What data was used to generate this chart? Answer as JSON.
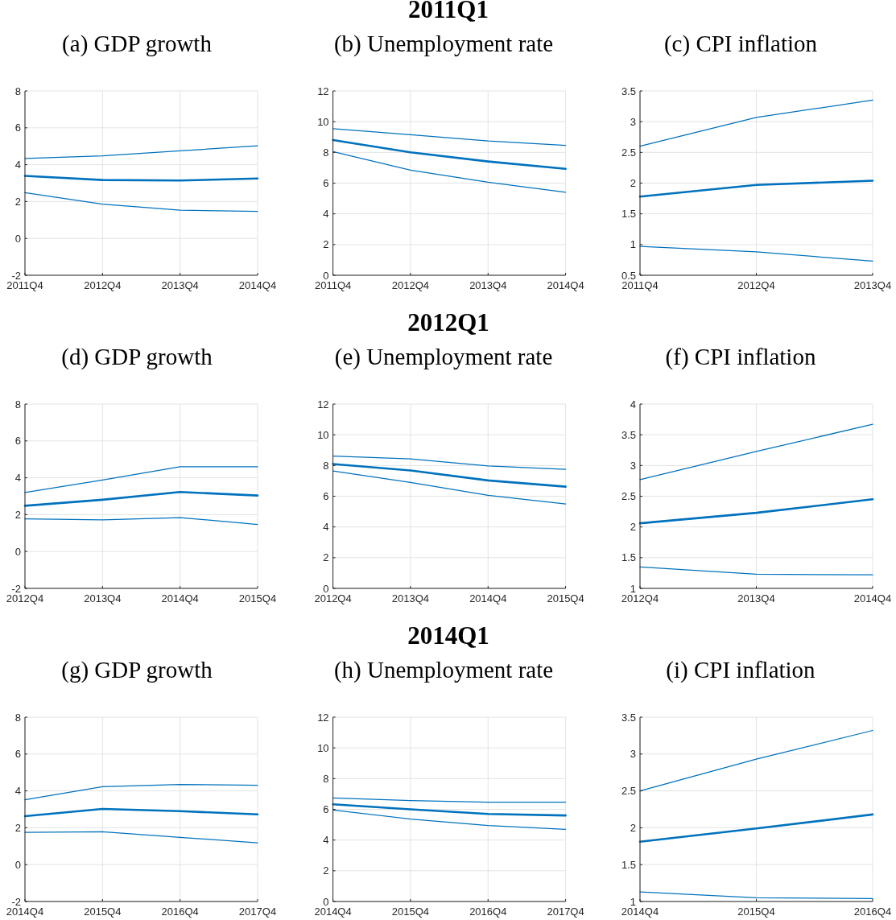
{
  "chart_data": [
    {
      "type": "other",
      "title": "2011Q1"
    },
    {
      "type": "line",
      "title": "(a) GDP growth",
      "categories": [
        "2011Q4",
        "2012Q4",
        "2013Q4",
        "2014Q4"
      ],
      "series": [
        {
          "color": "#0072bd",
          "values": [
            4.34,
            4.48,
            4.75,
            5.02
          ]
        },
        {
          "color": "#0072bd",
          "values": [
            3.39,
            3.17,
            3.14,
            3.25
          ]
        },
        {
          "color": "#0072bd",
          "values": [
            2.48,
            1.86,
            1.53,
            1.47
          ]
        }
      ],
      "ylim": [
        -2,
        8
      ],
      "yticks": [
        -2,
        0,
        2,
        4,
        6,
        8
      ],
      "grid": true
    },
    {
      "type": "line",
      "title": "(b) Unemployment rate",
      "categories": [
        "2011Q4",
        "2012Q4",
        "2013Q4",
        "2014Q4"
      ],
      "series": [
        {
          "color": "#0072bd",
          "values": [
            9.55,
            9.15,
            8.74,
            8.46
          ]
        },
        {
          "color": "#0072bd",
          "values": [
            8.8,
            8.0,
            7.41,
            6.93
          ]
        },
        {
          "color": "#0072bd",
          "values": [
            8.05,
            6.85,
            6.06,
            5.41
          ]
        }
      ],
      "ylim": [
        0,
        12
      ],
      "yticks": [
        0,
        2,
        4,
        6,
        8,
        10,
        12
      ],
      "grid": true
    },
    {
      "type": "line",
      "title": "(c) CPI inflation",
      "categories": [
        "2011Q4",
        "2012Q4",
        "2013Q4"
      ],
      "series": [
        {
          "color": "#0072bd",
          "values": [
            2.6,
            3.07,
            3.35
          ]
        },
        {
          "color": "#0072bd",
          "values": [
            1.78,
            1.97,
            2.04
          ]
        },
        {
          "color": "#0072bd",
          "values": [
            0.97,
            0.88,
            0.73
          ]
        }
      ],
      "ylim": [
        0.5,
        3.5
      ],
      "yticks": [
        0.5,
        1,
        1.5,
        2,
        2.5,
        3,
        3.5
      ],
      "grid": true
    },
    {
      "type": "other",
      "title": "2012Q1"
    },
    {
      "type": "line",
      "title": "(d) GDP growth",
      "categories": [
        "2012Q4",
        "2013Q4",
        "2014Q4",
        "2015Q4"
      ],
      "series": [
        {
          "color": "#0072bd",
          "values": [
            3.2,
            3.88,
            4.6,
            4.6
          ]
        },
        {
          "color": "#0072bd",
          "values": [
            2.48,
            2.81,
            3.23,
            3.04
          ]
        },
        {
          "color": "#0072bd",
          "values": [
            1.77,
            1.72,
            1.84,
            1.47
          ]
        }
      ],
      "ylim": [
        -2,
        8
      ],
      "yticks": [
        -2,
        0,
        2,
        4,
        6,
        8
      ],
      "grid": true
    },
    {
      "type": "line",
      "title": "(e) Unemployment rate",
      "categories": [
        "2012Q4",
        "2013Q4",
        "2014Q4",
        "2015Q4"
      ],
      "series": [
        {
          "color": "#0072bd",
          "values": [
            8.62,
            8.43,
            7.97,
            7.75
          ]
        },
        {
          "color": "#0072bd",
          "values": [
            8.1,
            7.68,
            7.03,
            6.62
          ]
        },
        {
          "color": "#0072bd",
          "values": [
            7.64,
            6.9,
            6.06,
            5.5
          ]
        }
      ],
      "ylim": [
        0,
        12
      ],
      "yticks": [
        0,
        2,
        4,
        6,
        8,
        10,
        12
      ],
      "grid": true
    },
    {
      "type": "line",
      "title": "(f) CPI inflation",
      "categories": [
        "2012Q4",
        "2013Q4",
        "2014Q4"
      ],
      "series": [
        {
          "color": "#0072bd",
          "values": [
            2.77,
            3.23,
            3.67
          ]
        },
        {
          "color": "#0072bd",
          "values": [
            2.06,
            2.23,
            2.45
          ]
        },
        {
          "color": "#0072bd",
          "values": [
            1.35,
            1.23,
            1.22
          ]
        }
      ],
      "ylim": [
        1,
        4
      ],
      "yticks": [
        1,
        1.5,
        2,
        2.5,
        3,
        3.5,
        4
      ],
      "grid": true
    },
    {
      "type": "other",
      "title": "2014Q1"
    },
    {
      "type": "line",
      "title": "(g) GDP growth",
      "categories": [
        "2014Q4",
        "2015Q4",
        "2016Q4",
        "2017Q4"
      ],
      "series": [
        {
          "color": "#0072bd",
          "values": [
            3.52,
            4.23,
            4.35,
            4.3
          ]
        },
        {
          "color": "#0072bd",
          "values": [
            2.63,
            3.02,
            2.9,
            2.73
          ]
        },
        {
          "color": "#0072bd",
          "values": [
            1.75,
            1.78,
            1.48,
            1.18
          ]
        }
      ],
      "ylim": [
        -2,
        8
      ],
      "yticks": [
        -2,
        0,
        2,
        4,
        6,
        8
      ],
      "grid": true
    },
    {
      "type": "line",
      "title": "(h) Unemployment rate",
      "categories": [
        "2014Q4",
        "2015Q4",
        "2016Q4",
        "2017Q4"
      ],
      "series": [
        {
          "color": "#0072bd",
          "values": [
            6.74,
            6.57,
            6.46,
            6.47
          ]
        },
        {
          "color": "#0072bd",
          "values": [
            6.33,
            6.0,
            5.7,
            5.6
          ]
        },
        {
          "color": "#0072bd",
          "values": [
            5.95,
            5.37,
            4.95,
            4.69
          ]
        }
      ],
      "ylim": [
        0,
        12
      ],
      "yticks": [
        0,
        2,
        4,
        6,
        8,
        10,
        12
      ],
      "grid": true
    },
    {
      "type": "line",
      "title": "(i) CPI inflation",
      "categories": [
        "2014Q4",
        "2015Q4",
        "2016Q4"
      ],
      "series": [
        {
          "color": "#0072bd",
          "values": [
            2.5,
            2.93,
            3.32
          ]
        },
        {
          "color": "#0072bd",
          "values": [
            1.81,
            1.99,
            2.18
          ]
        },
        {
          "color": "#0072bd",
          "values": [
            1.13,
            1.05,
            1.04
          ]
        }
      ],
      "ylim": [
        1,
        3.5
      ],
      "yticks": [
        1,
        1.5,
        2,
        2.5,
        3,
        3.5
      ],
      "grid": true
    }
  ]
}
